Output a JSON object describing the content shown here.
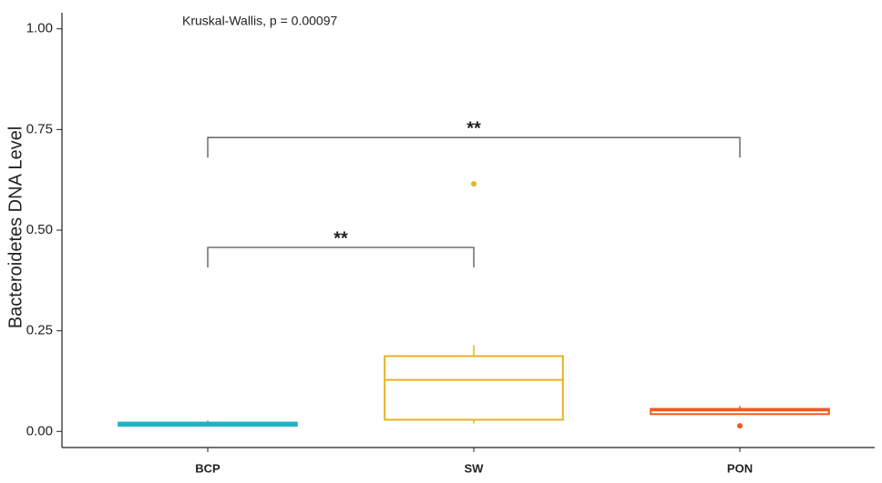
{
  "chart_data": {
    "type": "box",
    "ylabel": "Bacteroidetes DNA Level",
    "annotation": "Kruskal-Wallis, p = 0.00097",
    "categories": [
      "BCP",
      "SW",
      "PON"
    ],
    "boxes": [
      {
        "color": "#1fb3c2",
        "min": 0.012,
        "q1": 0.014,
        "median": 0.018,
        "q3": 0.022,
        "max": 0.027,
        "outliers": []
      },
      {
        "color": "#e6b422",
        "min": 0.02,
        "q1": 0.029,
        "median": 0.128,
        "q3": 0.187,
        "max": 0.214,
        "outliers": [
          0.615
        ]
      },
      {
        "color": "#f05a22",
        "min": 0.043,
        "q1": 0.043,
        "median": 0.052,
        "q3": 0.056,
        "max": 0.063,
        "outliers": [
          0.014
        ]
      }
    ],
    "comparisons": [
      {
        "groups": [
          "BCP",
          "SW"
        ],
        "y": 0.457,
        "label": "**"
      },
      {
        "groups": [
          "BCP",
          "PON"
        ],
        "y": 0.73,
        "label": "**"
      }
    ],
    "ylim": [
      -0.04,
      1.04
    ],
    "yticks": [
      {
        "value": 0,
        "label": "0.00"
      },
      {
        "value": 0.25,
        "label": "0.25"
      },
      {
        "value": 0.5,
        "label": "0.50"
      },
      {
        "value": 0.75,
        "label": "0.75"
      },
      {
        "value": 1,
        "label": "1.00"
      }
    ]
  }
}
